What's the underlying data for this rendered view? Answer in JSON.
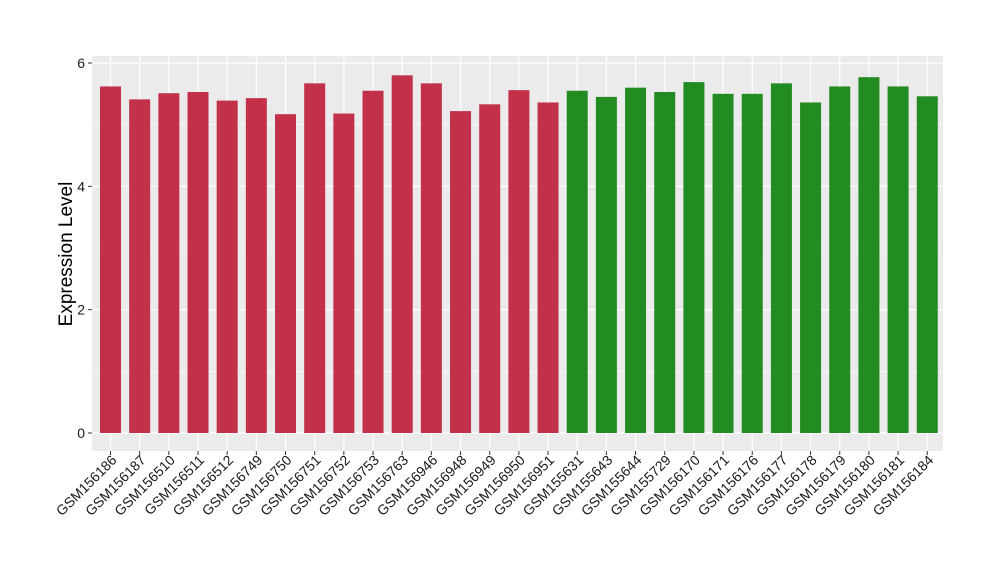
{
  "chart_data": {
    "type": "bar",
    "title": "",
    "xlabel": "",
    "ylabel": "Expression Level",
    "ylim": [
      0,
      6
    ],
    "yticks": [
      0,
      2,
      4,
      6
    ],
    "grid": true,
    "legend": "none",
    "colors": {
      "panel": "#EBEBEB",
      "grid": "#FFFFFF",
      "group1": "#C2304A",
      "group2": "#228B22"
    },
    "categories": [
      "GSM156186",
      "GSM156187",
      "GSM156510",
      "GSM156511",
      "GSM156512",
      "GSM156749",
      "GSM156750",
      "GSM156751",
      "GSM156752",
      "GSM156753",
      "GSM156763",
      "GSM156946",
      "GSM156948",
      "GSM156949",
      "GSM156950",
      "GSM156951",
      "GSM155631",
      "GSM155643",
      "GSM155644",
      "GSM155729",
      "GSM156170",
      "GSM156171",
      "GSM156176",
      "GSM156177",
      "GSM156178",
      "GSM156179",
      "GSM156180",
      "GSM156181",
      "GSM156184"
    ],
    "values": [
      5.62,
      5.41,
      5.51,
      5.53,
      5.39,
      5.43,
      5.17,
      5.67,
      5.18,
      5.55,
      5.8,
      5.67,
      5.22,
      5.33,
      5.56,
      5.36,
      5.55,
      5.45,
      5.6,
      5.53,
      5.69,
      5.5,
      5.5,
      5.67,
      5.36,
      5.62,
      5.77,
      5.62,
      5.46
    ],
    "groups": [
      1,
      1,
      1,
      1,
      1,
      1,
      1,
      1,
      1,
      1,
      1,
      1,
      1,
      1,
      1,
      1,
      2,
      2,
      2,
      2,
      2,
      2,
      2,
      2,
      2,
      2,
      2,
      2,
      2
    ]
  }
}
